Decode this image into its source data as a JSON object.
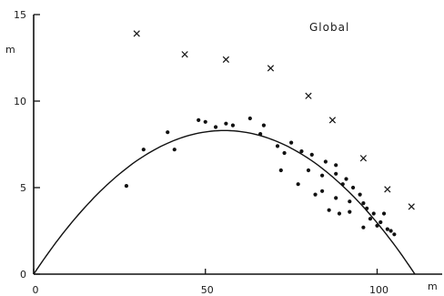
{
  "chart_data": {
    "type": "scatter",
    "title": "Global",
    "ylabel": "m",
    "xlabel": "m",
    "xlim": [
      0,
      120
    ],
    "ylim": [
      0,
      15
    ],
    "x_tick_labels": [
      "0",
      "50",
      "100"
    ],
    "x_ticks": [
      0,
      50,
      100
    ],
    "y_tick_labels": [
      "0",
      "5",
      "10",
      "15"
    ],
    "y_ticks": [
      0,
      5,
      10,
      15
    ],
    "grid": false,
    "series": [
      {
        "marker": "dot",
        "points": [
          [
            27,
            5.1
          ],
          [
            32,
            7.2
          ],
          [
            39,
            8.2
          ],
          [
            41,
            7.2
          ],
          [
            48,
            8.9
          ],
          [
            50,
            8.8
          ],
          [
            53,
            8.5
          ],
          [
            56,
            8.7
          ],
          [
            58,
            8.6
          ],
          [
            63,
            9.0
          ],
          [
            66,
            8.1
          ],
          [
            67,
            8.6
          ],
          [
            71,
            7.4
          ],
          [
            72,
            6.0
          ],
          [
            73,
            7.0
          ],
          [
            75,
            7.6
          ],
          [
            77,
            5.2
          ],
          [
            78,
            7.1
          ],
          [
            80,
            6.0
          ],
          [
            81,
            6.9
          ],
          [
            82,
            4.6
          ],
          [
            84,
            5.7
          ],
          [
            84,
            4.8
          ],
          [
            85,
            6.5
          ],
          [
            86,
            3.7
          ],
          [
            88,
            6.3
          ],
          [
            88,
            5.8
          ],
          [
            88,
            4.4
          ],
          [
            89,
            3.5
          ],
          [
            90,
            5.2
          ],
          [
            91,
            5.5
          ],
          [
            92,
            4.2
          ],
          [
            92,
            3.6
          ],
          [
            93,
            5.0
          ],
          [
            95,
            4.6
          ],
          [
            96,
            2.7
          ],
          [
            96,
            4.1
          ],
          [
            97,
            3.8
          ],
          [
            98,
            3.2
          ],
          [
            99,
            3.5
          ],
          [
            100,
            2.8
          ],
          [
            101,
            3.0
          ],
          [
            102,
            3.5
          ],
          [
            103,
            2.6
          ],
          [
            104,
            2.5
          ],
          [
            105,
            2.3
          ]
        ]
      },
      {
        "marker": "cross",
        "points": [
          [
            30,
            13.9
          ],
          [
            44,
            12.7
          ],
          [
            56,
            12.4
          ],
          [
            69,
            11.9
          ],
          [
            80,
            10.3
          ],
          [
            87,
            8.9
          ],
          [
            96,
            6.7
          ],
          [
            103,
            4.9
          ],
          [
            110,
            3.9
          ]
        ]
      },
      {
        "marker": "line",
        "curve": "parabola",
        "x_range": [
          0,
          111
        ],
        "peak": [
          55.5,
          8.3
        ]
      }
    ]
  }
}
